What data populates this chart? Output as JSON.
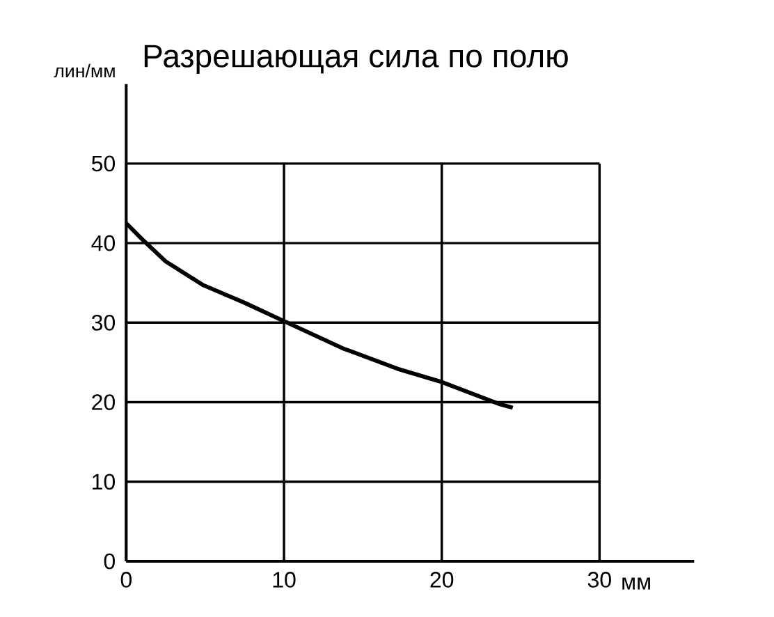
{
  "chart_data": {
    "type": "line",
    "title": "Разрешающая сила по полю",
    "xlabel": "мм",
    "ylabel": "лин/мм",
    "x": [
      0,
      1,
      2.5,
      4.9,
      7.5,
      10,
      13.7,
      17.2,
      19.9,
      23.6,
      24.5
    ],
    "series": [
      {
        "color": "#000000",
        "values": [
          42.5,
          40.5,
          37.7,
          34.7,
          32.5,
          30.2,
          26.8,
          24.2,
          22.6,
          19.8,
          19.3
        ]
      }
    ],
    "xlim": [
      0,
      36
    ],
    "ylim": [
      0,
      60
    ],
    "xticks": [
      0,
      10,
      20,
      30
    ],
    "yticks": [
      0,
      10,
      20,
      30,
      40,
      50
    ],
    "grid": true,
    "marker": "none",
    "line_style": "solid"
  }
}
